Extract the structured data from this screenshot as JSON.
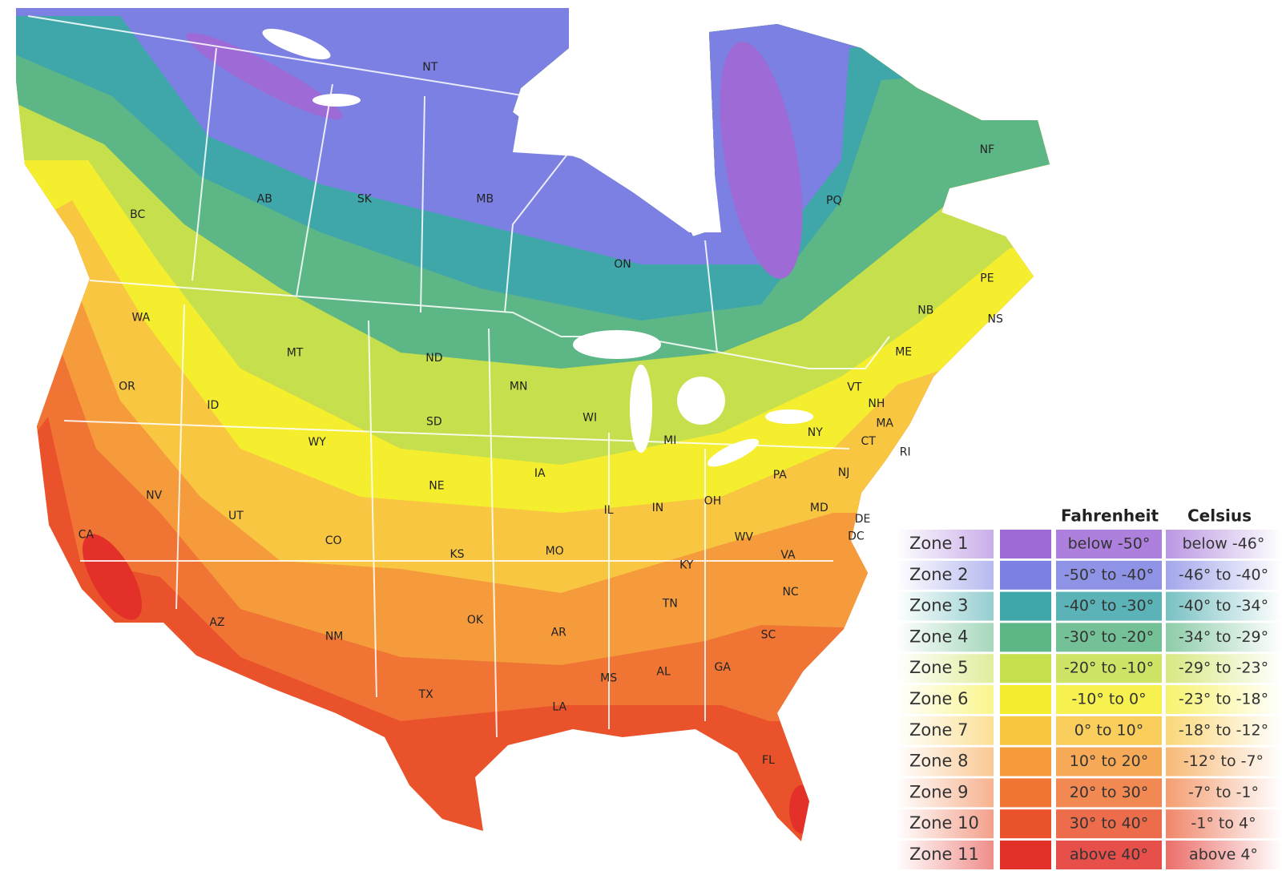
{
  "map": {
    "labels": [
      "NT",
      "BC",
      "AB",
      "SK",
      "MB",
      "ON",
      "PQ",
      "NF",
      "PE",
      "NS",
      "NB",
      "ME",
      "VT",
      "NH",
      "MA",
      "CT",
      "RI",
      "NY",
      "PA",
      "NJ",
      "MD",
      "DE",
      "DC",
      "WA",
      "OR",
      "ID",
      "MT",
      "WY",
      "NV",
      "UT",
      "CA",
      "AZ",
      "NM",
      "CO",
      "ND",
      "SD",
      "NE",
      "KS",
      "OK",
      "TX",
      "MN",
      "IA",
      "MO",
      "AR",
      "LA",
      "WI",
      "IL",
      "MI",
      "IN",
      "OH",
      "KY",
      "TN",
      "MS",
      "AL",
      "GA",
      "FL",
      "SC",
      "NC",
      "VA",
      "WV"
    ]
  },
  "legend": {
    "fahrenheit_header": "Fahrenheit",
    "celsius_header": "Celsius",
    "rows": [
      {
        "zone": "Zone 1",
        "color": "#9d6ad6",
        "fahrenheit": "below -50°",
        "celsius": "below -46°"
      },
      {
        "zone": "Zone 2",
        "color": "#7b80e2",
        "fahrenheit": "-50° to -40°",
        "celsius": "-46° to -40°"
      },
      {
        "zone": "Zone 3",
        "color": "#3fa6aa",
        "fahrenheit": "-40° to -30°",
        "celsius": "-40° to -34°"
      },
      {
        "zone": "Zone 4",
        "color": "#5db685",
        "fahrenheit": "-30° to -20°",
        "celsius": "-34° to -29°"
      },
      {
        "zone": "Zone 5",
        "color": "#c6df4c",
        "fahrenheit": "-20° to -10°",
        "celsius": "-29° to -23°"
      },
      {
        "zone": "Zone 6",
        "color": "#f4ee2f",
        "fahrenheit": "-10° to 0°",
        "celsius": "-23° to -18°"
      },
      {
        "zone": "Zone 7",
        "color": "#f8c640",
        "fahrenheit": "0° to 10°",
        "celsius": "-18° to -12°"
      },
      {
        "zone": "Zone 8",
        "color": "#f59b3b",
        "fahrenheit": "10° to 20°",
        "celsius": "-12° to -7°"
      },
      {
        "zone": "Zone 9",
        "color": "#f07434",
        "fahrenheit": "20° to 30°",
        "celsius": "-7° to -1°"
      },
      {
        "zone": "Zone 10",
        "color": "#e9522b",
        "fahrenheit": "30° to 40°",
        "celsius": "-1° to 4°"
      },
      {
        "zone": "Zone 11",
        "color": "#e3312a",
        "fahrenheit": "above 40°",
        "celsius": "above 4°"
      }
    ]
  }
}
